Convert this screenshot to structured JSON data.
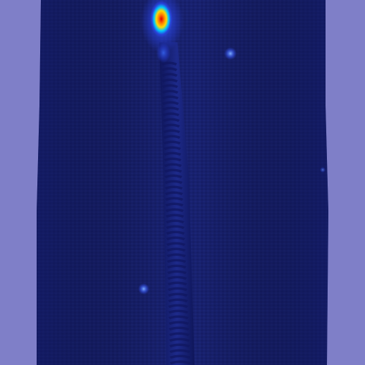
{
  "image": {
    "subject": "zipper",
    "overlay": "anomaly-heatmap",
    "colors": {
      "background": "#7f7fc8",
      "fabric": "#18216f",
      "fabric_dark": "#121a5c",
      "teeth": "#1d2a8c",
      "teeth_dark": "#101760",
      "heat_low": "#2840d8",
      "heat_mid": "#00c8ff",
      "heat_high": "#ffd800",
      "heat_peak": "#e00000"
    }
  }
}
